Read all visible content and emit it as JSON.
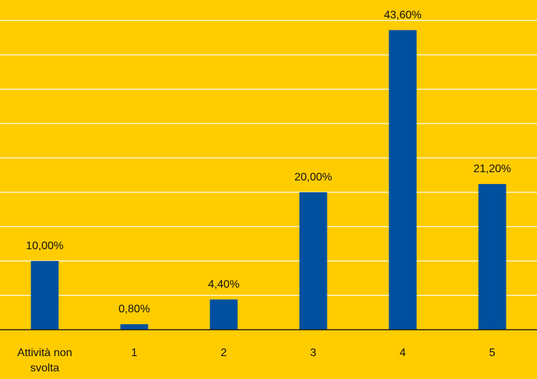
{
  "chart_data": {
    "type": "bar",
    "categories": [
      "Attività non svolta",
      "1",
      "2",
      "3",
      "4",
      "5"
    ],
    "category_label_lines": [
      [
        "Attività non",
        "svolta"
      ],
      [
        "1"
      ],
      [
        "2"
      ],
      [
        "3"
      ],
      [
        "4"
      ],
      [
        "5"
      ]
    ],
    "values": [
      10.0,
      0.8,
      4.4,
      20.0,
      43.6,
      21.2
    ],
    "data_labels": [
      "10,00%",
      "0,80%",
      "4,40%",
      "20,00%",
      "43,60%",
      "21,20%"
    ],
    "ylim": [
      0,
      45
    ],
    "y_gridline_step": 5,
    "grid": true,
    "title": "",
    "xlabel": "",
    "ylabel": ""
  },
  "colors": {
    "background": "#FFCC00",
    "bar": "#0050A0",
    "gridline": "#FFFFFF",
    "axis": "#1A1A1A",
    "text": "#111111"
  }
}
